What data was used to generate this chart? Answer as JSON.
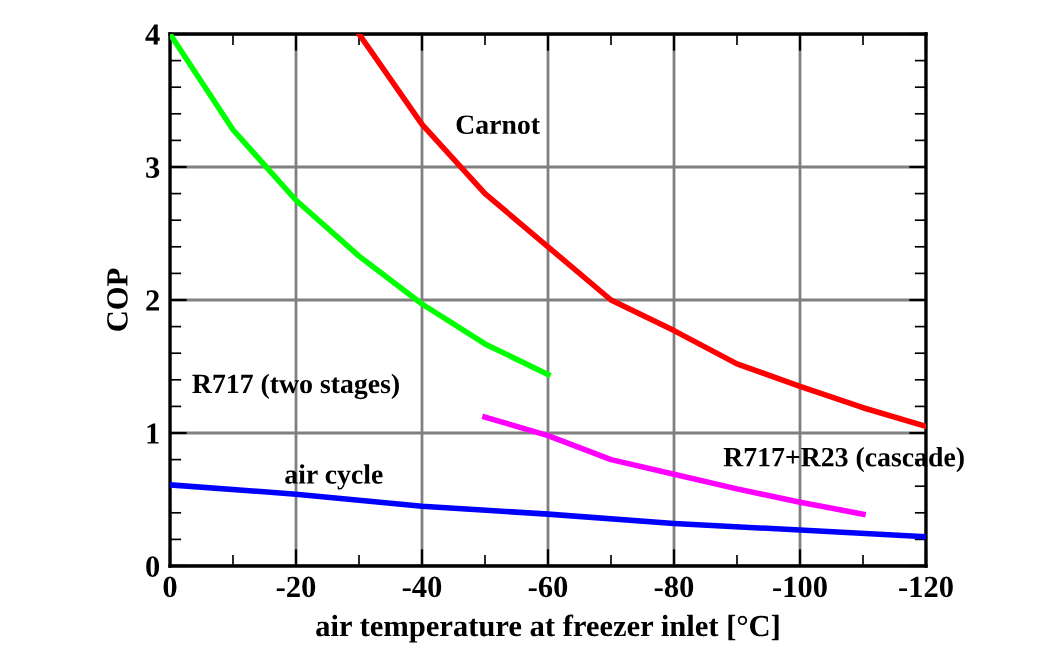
{
  "chart_data": {
    "type": "line",
    "xlabel": "air temperature at freezer inlet [°C]",
    "ylabel": "COP",
    "xlim": [
      0,
      -120
    ],
    "xticks": [
      0,
      -20,
      -40,
      -60,
      -80,
      -100,
      -120
    ],
    "ylim": [
      0,
      4
    ],
    "yticks": [
      0,
      1,
      2,
      3,
      4
    ],
    "grid": true,
    "legend": false,
    "marker": "none",
    "line_style": "solid",
    "series": [
      {
        "name": "Carnot",
        "color": "#ff0000",
        "x": [
          -30,
          -40,
          -50,
          -60,
          -70,
          -80,
          -90,
          -100,
          -110,
          -120
        ],
        "values": [
          4.0,
          3.32,
          2.8,
          2.4,
          2.0,
          1.77,
          1.52,
          1.35,
          1.19,
          1.05
        ]
      },
      {
        "name": "R717 (two stages)",
        "color": "#00ff00",
        "x": [
          0,
          -10,
          -20,
          -30,
          -40,
          -50,
          -60
        ],
        "values": [
          4.0,
          3.28,
          2.75,
          2.33,
          1.97,
          1.67,
          1.44
        ]
      },
      {
        "name": "R717+R23 (cascade)",
        "color": "#ff00ff",
        "x": [
          -50,
          -60,
          -70,
          -80,
          -90,
          -100,
          -110
        ],
        "values": [
          1.12,
          0.98,
          0.8,
          0.69,
          0.58,
          0.48,
          0.39
        ]
      },
      {
        "name": "air cycle",
        "color": "#0000ff",
        "x": [
          0,
          -20,
          -40,
          -60,
          -80,
          -100,
          -120
        ],
        "values": [
          0.61,
          0.54,
          0.45,
          0.39,
          0.32,
          0.27,
          0.22
        ]
      }
    ]
  }
}
